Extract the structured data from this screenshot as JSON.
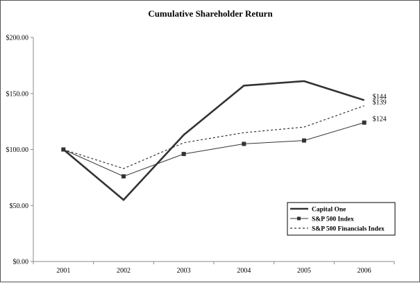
{
  "chart_data": {
    "type": "line",
    "title": "Cumulative Shareholder Return",
    "xlabel": "",
    "ylabel": "",
    "categories": [
      "2001",
      "2002",
      "2003",
      "2004",
      "2005",
      "2006"
    ],
    "ylim": [
      0,
      200
    ],
    "y_ticks": [
      0,
      50,
      100,
      150,
      200
    ],
    "y_tick_labels": [
      "$0.00",
      "$50.00",
      "$100.00",
      "$150.00",
      "$200.00"
    ],
    "grid": false,
    "legend_position": "bottom-right",
    "series": [
      {
        "name": "Capital One",
        "values": [
          100,
          55,
          113,
          157,
          161,
          144
        ],
        "color": "#333333",
        "style": "solid-thick",
        "end_label": "$144"
      },
      {
        "name": "S&P 500 Index",
        "values": [
          100,
          76,
          96,
          105,
          108,
          124
        ],
        "color": "#333333",
        "style": "solid-thin-square-markers",
        "end_label": "$124"
      },
      {
        "name": "S&P 500 Financials Index",
        "values": [
          100,
          83,
          106,
          115,
          120,
          139
        ],
        "color": "#333333",
        "style": "dashed",
        "end_label": "$139"
      }
    ]
  }
}
